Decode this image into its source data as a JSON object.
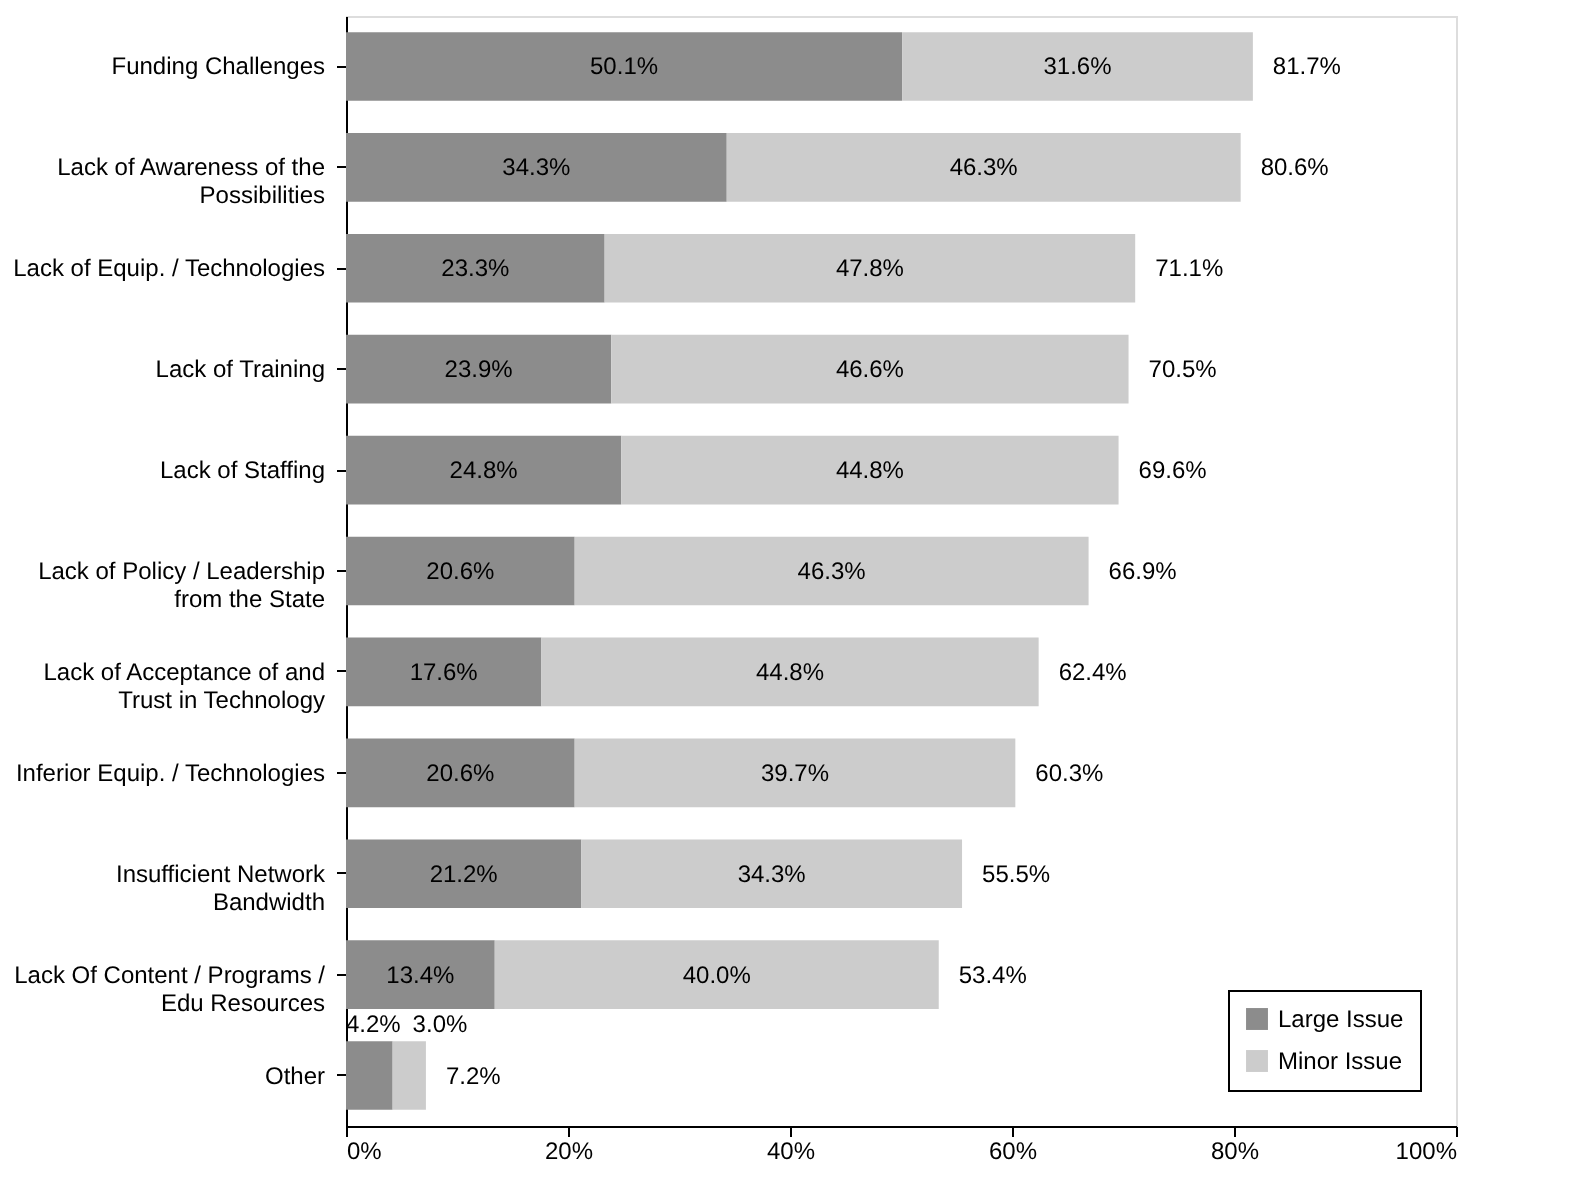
{
  "chart_data": {
    "type": "bar",
    "orientation": "horizontal",
    "stacked": true,
    "categories": [
      "Funding Challenges",
      "Lack of Awareness of the\nPossibilities",
      "Lack of Equip. / Technologies",
      "Lack of Training",
      "Lack of Staffing",
      "Lack of Policy / Leadership\nfrom the State",
      "Lack of Acceptance of and\nTrust in Technology",
      "Inferior Equip. / Technologies",
      "Insufficient Network\nBandwidth",
      "Lack Of Content / Programs /\nEdu Resources",
      "Other"
    ],
    "series": [
      {
        "name": "Large Issue",
        "color": "#8c8c8c",
        "values": [
          50.1,
          34.3,
          23.3,
          23.9,
          24.8,
          20.6,
          17.6,
          20.6,
          21.2,
          13.4,
          4.2
        ],
        "value_labels": [
          "50.1%",
          "34.3%",
          "23.3%",
          "23.9%",
          "24.8%",
          "20.6%",
          "17.6%",
          "20.6%",
          "21.2%",
          "13.4%",
          "4.2%"
        ]
      },
      {
        "name": "Minor Issue",
        "color": "#cccccc",
        "values": [
          31.6,
          46.3,
          47.8,
          46.6,
          44.8,
          46.3,
          44.8,
          39.7,
          34.3,
          40.0,
          3.0
        ],
        "value_labels": [
          "31.6%",
          "46.3%",
          "47.8%",
          "46.6%",
          "44.8%",
          "46.3%",
          "44.8%",
          "39.7%",
          "34.3%",
          "40.0%",
          "3.0%"
        ]
      }
    ],
    "totals": [
      "81.7%",
      "80.6%",
      "71.1%",
      "70.5%",
      "69.6%",
      "66.9%",
      "62.4%",
      "60.3%",
      "55.5%",
      "53.4%",
      "7.2%"
    ],
    "xlim": [
      0,
      100
    ],
    "xticks": [
      {
        "value": 0,
        "label": "0%"
      },
      {
        "value": 20,
        "label": "20%"
      },
      {
        "value": 40,
        "label": "40%"
      },
      {
        "value": 60,
        "label": "60%"
      },
      {
        "value": 80,
        "label": "80%"
      },
      {
        "value": 100,
        "label": "100%"
      }
    ],
    "grid": false,
    "legend": "bottom right"
  }
}
